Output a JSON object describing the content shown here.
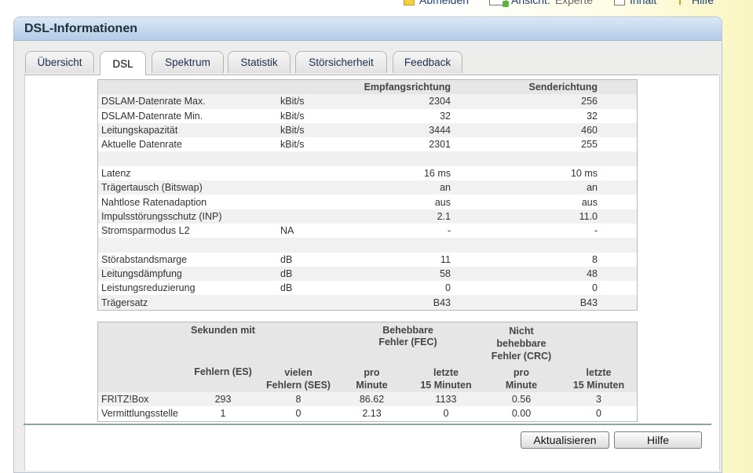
{
  "toolbar": {
    "logout": "Abmelden",
    "view_prefix": "Ansicht:",
    "view_mode": "Experte",
    "content": "Inhalt",
    "help": "Hilfe"
  },
  "panel": {
    "title": "DSL-Informationen"
  },
  "tabs": [
    {
      "label": "Übersicht",
      "active": false
    },
    {
      "label": "DSL",
      "active": true
    },
    {
      "label": "Spektrum",
      "active": false
    },
    {
      "label": "Statistik",
      "active": false
    },
    {
      "label": "Störsicherheit",
      "active": false
    },
    {
      "label": "Feedback",
      "active": false
    }
  ],
  "dsl_table": {
    "headers": {
      "rx": "Empfangsrichtung",
      "tx": "Senderichtung"
    },
    "rows": [
      {
        "label": "DSLAM-Datenrate Max.",
        "unit": "kBit/s",
        "rx": "2304",
        "tx": "256"
      },
      {
        "label": "DSLAM-Datenrate Min.",
        "unit": "kBit/s",
        "rx": "32",
        "tx": "32"
      },
      {
        "label": "Leitungskapazität",
        "unit": "kBit/s",
        "rx": "3444",
        "tx": "460"
      },
      {
        "label": "Aktuelle Datenrate",
        "unit": "kBit/s",
        "rx": "2301",
        "tx": "255"
      },
      {
        "label": "",
        "unit": "",
        "rx": "",
        "tx": ""
      },
      {
        "label": "Latenz",
        "unit": "",
        "rx": "16 ms",
        "tx": "10 ms"
      },
      {
        "label": "Trägertausch (Bitswap)",
        "unit": "",
        "rx": "an",
        "tx": "an"
      },
      {
        "label": "Nahtlose Ratenadaption",
        "unit": "",
        "rx": "aus",
        "tx": "aus"
      },
      {
        "label": "Impulsstörungsschutz (INP)",
        "unit": "",
        "rx": "2.1",
        "tx": "11.0"
      },
      {
        "label": "Stromsparmodus L2",
        "unit": "NA",
        "rx": "-",
        "tx": "-"
      },
      {
        "label": "",
        "unit": "",
        "rx": "",
        "tx": ""
      },
      {
        "label": "Störabstandsmarge",
        "unit": "dB",
        "rx": "11",
        "tx": "8"
      },
      {
        "label": "Leitungsdämpfung",
        "unit": "dB",
        "rx": "58",
        "tx": "48"
      },
      {
        "label": "Leistungsreduzierung",
        "unit": "dB",
        "rx": "0",
        "tx": "0"
      },
      {
        "label": "Trägersatz",
        "unit": "",
        "rx": "B43",
        "tx": "B43"
      }
    ]
  },
  "error_table": {
    "group_headers": {
      "seconds": "Sekunden mit",
      "fec": [
        "Behebbare",
        "Fehler (FEC)"
      ],
      "crc": [
        "Nicht",
        "behebbare",
        "Fehler (CRC)"
      ]
    },
    "sub_headers": {
      "es": "Fehlern (ES)",
      "ses": [
        "vielen",
        "Fehlern (SES)"
      ],
      "fec_min": [
        "pro",
        "Minute"
      ],
      "fec_15": [
        "letzte",
        "15 Minuten"
      ],
      "crc_min": [
        "pro",
        "Minute"
      ],
      "crc_15": [
        "letzte",
        "15 Minuten"
      ]
    },
    "rows": [
      {
        "label": "FRITZ!Box",
        "es": "293",
        "ses": "8",
        "fec_min": "86.62",
        "fec_15": "1133",
        "crc_min": "0.56",
        "crc_15": "3"
      },
      {
        "label": "Vermittlungsstelle",
        "es": "1",
        "ses": "0",
        "fec_min": "2.13",
        "fec_15": "0",
        "crc_min": "0.00",
        "crc_15": "0"
      }
    ]
  },
  "buttons": {
    "refresh": "Aktualisieren",
    "help": "Hilfe"
  }
}
